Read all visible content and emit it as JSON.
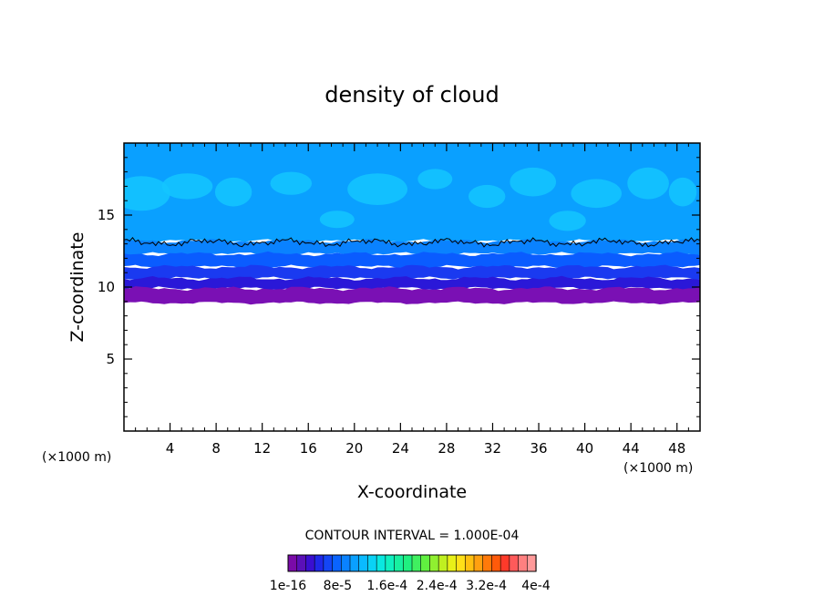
{
  "chart_data": {
    "type": "heatmap",
    "title": "density of cloud",
    "xlabel": "X-coordinate",
    "ylabel": "Z-coordinate",
    "x_unit_left": "(×1000 m)",
    "x_unit_right": "(×1000 m)",
    "xlim": [
      0,
      50
    ],
    "ylim": [
      0,
      20
    ],
    "x_ticks": [
      4,
      8,
      12,
      16,
      20,
      24,
      28,
      32,
      36,
      40,
      44,
      48
    ],
    "y_ticks": [
      5,
      10,
      15
    ],
    "contour_interval_label": "CONTOUR INTERVAL = 1.000E-04",
    "colorbar": {
      "labels": [
        "1e-16",
        "8e-5",
        "1.6e-4",
        "2.4e-4",
        "3.2e-4",
        "4e-4"
      ],
      "colors": [
        "#7a0ba8",
        "#5a10b8",
        "#3a0fd0",
        "#1f28e8",
        "#1446f5",
        "#0a64ff",
        "#0a82ff",
        "#0aa0ff",
        "#0abaff",
        "#0ad2f5",
        "#0ae8e0",
        "#10f0c0",
        "#18f0a0",
        "#20f080",
        "#40f060",
        "#60f040",
        "#90f030",
        "#c0f020",
        "#e8f018",
        "#ffe018",
        "#ffc010",
        "#ffa010",
        "#ff7a0a",
        "#ff5a0a",
        "#ff3a2a",
        "#ff5a5a",
        "#ff8080",
        "#ff9a9a"
      ]
    },
    "bands": [
      {
        "value": "cloud base (violet)",
        "z_bottom": 8.9,
        "z_top": 9.9,
        "color": "#7a10b4"
      },
      {
        "value": "deep blue",
        "z_bottom": 9.9,
        "z_top": 10.6,
        "color": "#2a18d8"
      },
      {
        "value": "blue",
        "z_bottom": 10.6,
        "z_top": 11.4,
        "color": "#1a3af0"
      },
      {
        "value": "mid blue",
        "z_bottom": 11.4,
        "z_top": 12.3,
        "color": "#0a5cff"
      },
      {
        "value": "light blue",
        "z_bottom": 12.3,
        "z_top": 13.2,
        "color": "#0a82ff"
      },
      {
        "value": "sky blue",
        "z_bottom": 13.2,
        "z_top": 20,
        "color": "#0aa0ff"
      }
    ],
    "contour_line_z": 13.1
  }
}
